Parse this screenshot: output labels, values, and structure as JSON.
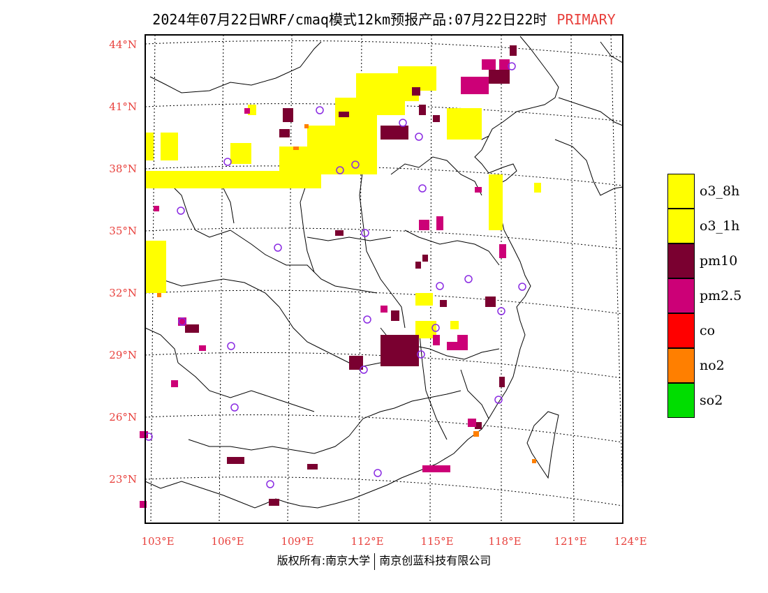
{
  "title": {
    "main": "2024年07月22日WRF/cmaq模式12km预报产品:07月22日22时",
    "tag": "PRIMARY",
    "tag_color": "#e8403c"
  },
  "axes": {
    "lat_labels": [
      "44°N",
      "41°N",
      "38°N",
      "35°N",
      "32°N",
      "29°N",
      "26°N",
      "23°N"
    ],
    "lon_labels": [
      "103°E",
      "106°E",
      "109°E",
      "112°E",
      "115°E",
      "118°E",
      "121°E",
      "124°E"
    ],
    "label_color": "#e8403c"
  },
  "legend": [
    {
      "label": "o3_8h",
      "color": "#ffff00"
    },
    {
      "label": "o3_1h",
      "color": "#ffff00"
    },
    {
      "label": "pm10",
      "color": "#7a0030"
    },
    {
      "label": "pm2.5",
      "color": "#cc0077"
    },
    {
      "label": "co",
      "color": "#ff0000"
    },
    {
      "label": "no2",
      "color": "#ff7f00"
    },
    {
      "label": "so2",
      "color": "#00dd00"
    }
  ],
  "stations_marker": "purple-circle",
  "copyright": {
    "left": "版权所有:南京大学",
    "right": "南京创蓝科技有限公司"
  }
}
